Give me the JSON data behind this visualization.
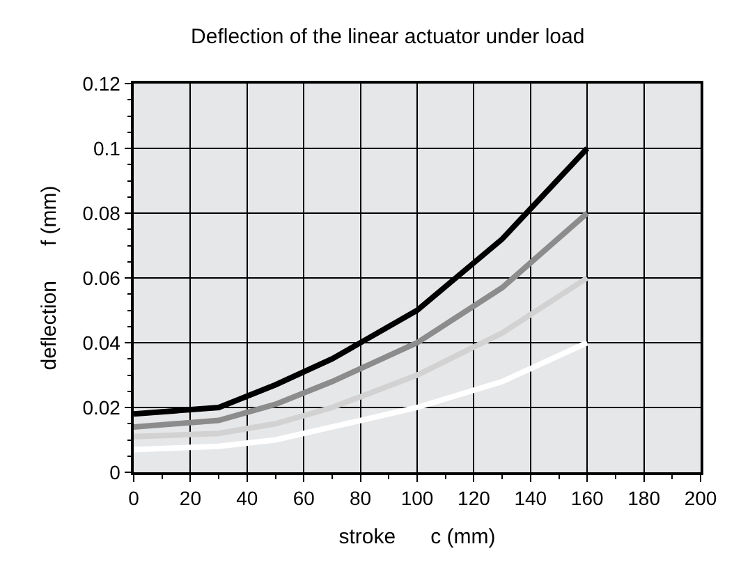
{
  "chart_data": {
    "type": "line",
    "title": "Deflection of the linear actuator under load",
    "xlabel": "stroke      c (mm)",
    "ylabel": "deflection      f (mm)",
    "x": [
      0,
      30,
      50,
      70,
      100,
      130,
      160
    ],
    "series": [
      {
        "color": "#000000",
        "values": [
          0.018,
          0.02,
          0.027,
          0.035,
          0.05,
          0.072,
          0.1
        ]
      },
      {
        "color": "#8c8c8c",
        "values": [
          0.014,
          0.016,
          0.021,
          0.028,
          0.04,
          0.057,
          0.08
        ]
      },
      {
        "color": "#d2d2d2",
        "values": [
          0.011,
          0.012,
          0.015,
          0.02,
          0.03,
          0.043,
          0.06
        ]
      },
      {
        "color": "#ffffff",
        "values": [
          0.007,
          0.008,
          0.01,
          0.014,
          0.02,
          0.028,
          0.04
        ]
      }
    ],
    "xlim": [
      0,
      200
    ],
    "xticks": [
      0,
      20,
      40,
      60,
      80,
      100,
      120,
      140,
      160,
      180,
      200
    ],
    "ylim": [
      0,
      0.12
    ],
    "yticks": [
      0,
      0.02,
      0.04,
      0.06,
      0.08,
      0.1,
      0.12
    ],
    "grid": true,
    "marker": "none",
    "line_style": "solid"
  }
}
